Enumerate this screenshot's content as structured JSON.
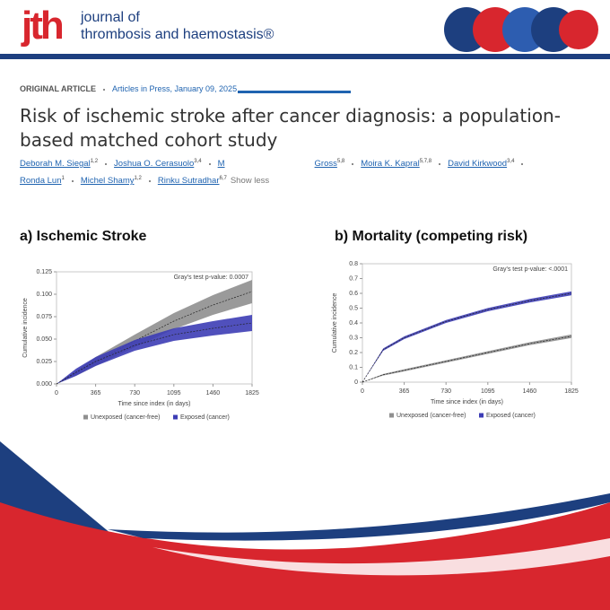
{
  "header": {
    "logo": "jth",
    "journal_line1": "journal of",
    "journal_line2": "thrombosis and haemostasis®"
  },
  "article": {
    "type": "ORIGINAL ARTICLE",
    "section": "Articles in Press, January 09, 2025",
    "title": "Risk of ischemic stroke after cancer diagnosis: a population-based matched cohort study",
    "authors": [
      {
        "name": "Deborah M. Siegal",
        "sup": "1,2"
      },
      {
        "name": "Joshua O. Cerasuolo",
        "sup": "3,4"
      },
      {
        "name": "M"
      },
      {
        "name": "Gross",
        "sup": "5,8"
      },
      {
        "name": "Moira K. Kapral",
        "sup": "5,7,8"
      },
      {
        "name": "David Kirkwood",
        "sup": "3,4"
      },
      {
        "name": "Ronda Lun",
        "sup": "1"
      },
      {
        "name": "Michel Shamy",
        "sup": "1,2"
      },
      {
        "name": "Rinku Sutradhar",
        "sup": "6,7"
      }
    ],
    "show_less": "Show less"
  },
  "chart_data": [
    {
      "type": "line",
      "title": "a) Ischemic Stroke",
      "annotation": "Gray's test p-value: 0.0007",
      "xlabel": "Time since index (in days)",
      "ylabel": "Cumulative incidence",
      "x": [
        0,
        182,
        365,
        730,
        1095,
        1460,
        1825
      ],
      "xlim": [
        0,
        1825
      ],
      "xticks": [
        0,
        365,
        730,
        1095,
        1460,
        1825
      ],
      "ylim": [
        0,
        0.125
      ],
      "yticks": [
        {
          "value": 0,
          "label": "0.000"
        },
        0.025,
        {
          "value": 0.05,
          "label": "0.050"
        },
        0.075,
        {
          "value": 0.1,
          "label": "0.100"
        },
        0.125
      ],
      "series": [
        {
          "name": "Unexposed (cancer-free)",
          "color": "#8f8f8f",
          "values": [
            0,
            0.012,
            0.025,
            0.048,
            0.07,
            0.088,
            0.103
          ],
          "lower": [
            0,
            0.009,
            0.02,
            0.041,
            0.061,
            0.077,
            0.09
          ],
          "upper": [
            0,
            0.015,
            0.03,
            0.055,
            0.079,
            0.099,
            0.116
          ]
        },
        {
          "name": "Exposed (cancer)",
          "color": "#3d3db5",
          "values": [
            0,
            0.013,
            0.025,
            0.043,
            0.055,
            0.062,
            0.068
          ],
          "lower": [
            0,
            0.009,
            0.02,
            0.037,
            0.048,
            0.054,
            0.059
          ],
          "upper": [
            0,
            0.017,
            0.03,
            0.049,
            0.062,
            0.07,
            0.077
          ]
        }
      ]
    },
    {
      "type": "line",
      "title": "b) Mortality (competing risk)",
      "annotation": "Gray's test p-value: <.0001",
      "xlabel": "Time since index (in days)",
      "ylabel": "Cumulative incidence",
      "x": [
        0,
        182,
        365,
        730,
        1095,
        1460,
        1825
      ],
      "xlim": [
        0,
        1825
      ],
      "xticks": [
        0,
        365,
        730,
        1095,
        1460,
        1825
      ],
      "ylim": [
        0,
        0.8
      ],
      "yticks": [
        0,
        0.1,
        0.2,
        0.3,
        0.4,
        0.5,
        0.6,
        0.7,
        0.8
      ],
      "series": [
        {
          "name": "Unexposed (cancer-free)",
          "color": "#8f8f8f",
          "values": [
            0,
            0.05,
            0.08,
            0.14,
            0.2,
            0.26,
            0.31
          ],
          "lower": [
            0,
            0.045,
            0.073,
            0.132,
            0.191,
            0.25,
            0.298
          ],
          "upper": [
            0,
            0.055,
            0.087,
            0.148,
            0.209,
            0.27,
            0.322
          ]
        },
        {
          "name": "Exposed (cancer)",
          "color": "#3d3db5",
          "values": [
            0,
            0.22,
            0.3,
            0.41,
            0.49,
            0.55,
            0.6
          ],
          "lower": [
            0,
            0.212,
            0.291,
            0.4,
            0.479,
            0.538,
            0.587
          ],
          "upper": [
            0,
            0.228,
            0.309,
            0.42,
            0.501,
            0.562,
            0.613
          ]
        }
      ]
    }
  ]
}
